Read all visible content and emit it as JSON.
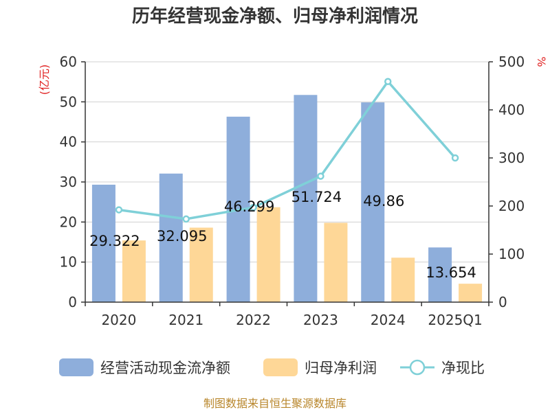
{
  "chart_data": {
    "type": "bar",
    "title": "历年经营现金净额、归母净利润情况",
    "categories": [
      "2020",
      "2021",
      "2022",
      "2023",
      "2024",
      "2025Q1"
    ],
    "series": [
      {
        "name": "经营活动现金流净额",
        "type": "bar",
        "axis": "left",
        "color": "#8eaedb",
        "values": [
          29.322,
          32.095,
          46.299,
          51.724,
          49.86,
          13.654
        ]
      },
      {
        "name": "归母净利润",
        "type": "bar",
        "axis": "left",
        "color": "#fed797",
        "values": [
          15.4,
          18.6,
          23.7,
          19.8,
          11.1,
          4.6
        ]
      },
      {
        "name": "净现比",
        "type": "line",
        "axis": "right",
        "color": "#7fd0d8",
        "values": [
          192,
          173,
          197,
          262,
          459,
          300
        ]
      }
    ],
    "data_labels": [
      "29.322",
      "32.095",
      "46.299",
      "51.724",
      "49.86",
      "13.654"
    ],
    "y_left": {
      "label": "(亿元)",
      "ticks": [
        "0",
        "10",
        "20",
        "30",
        "40",
        "50",
        "60"
      ],
      "ylim": [
        0,
        60
      ]
    },
    "y_right": {
      "label": "%",
      "ticks": [
        "0",
        "100",
        "200",
        "300",
        "400",
        "500"
      ],
      "ylim": [
        0,
        500
      ]
    },
    "grid": true,
    "legend_position": "bottom"
  },
  "source": "制图数据来自恒生聚源数据库"
}
